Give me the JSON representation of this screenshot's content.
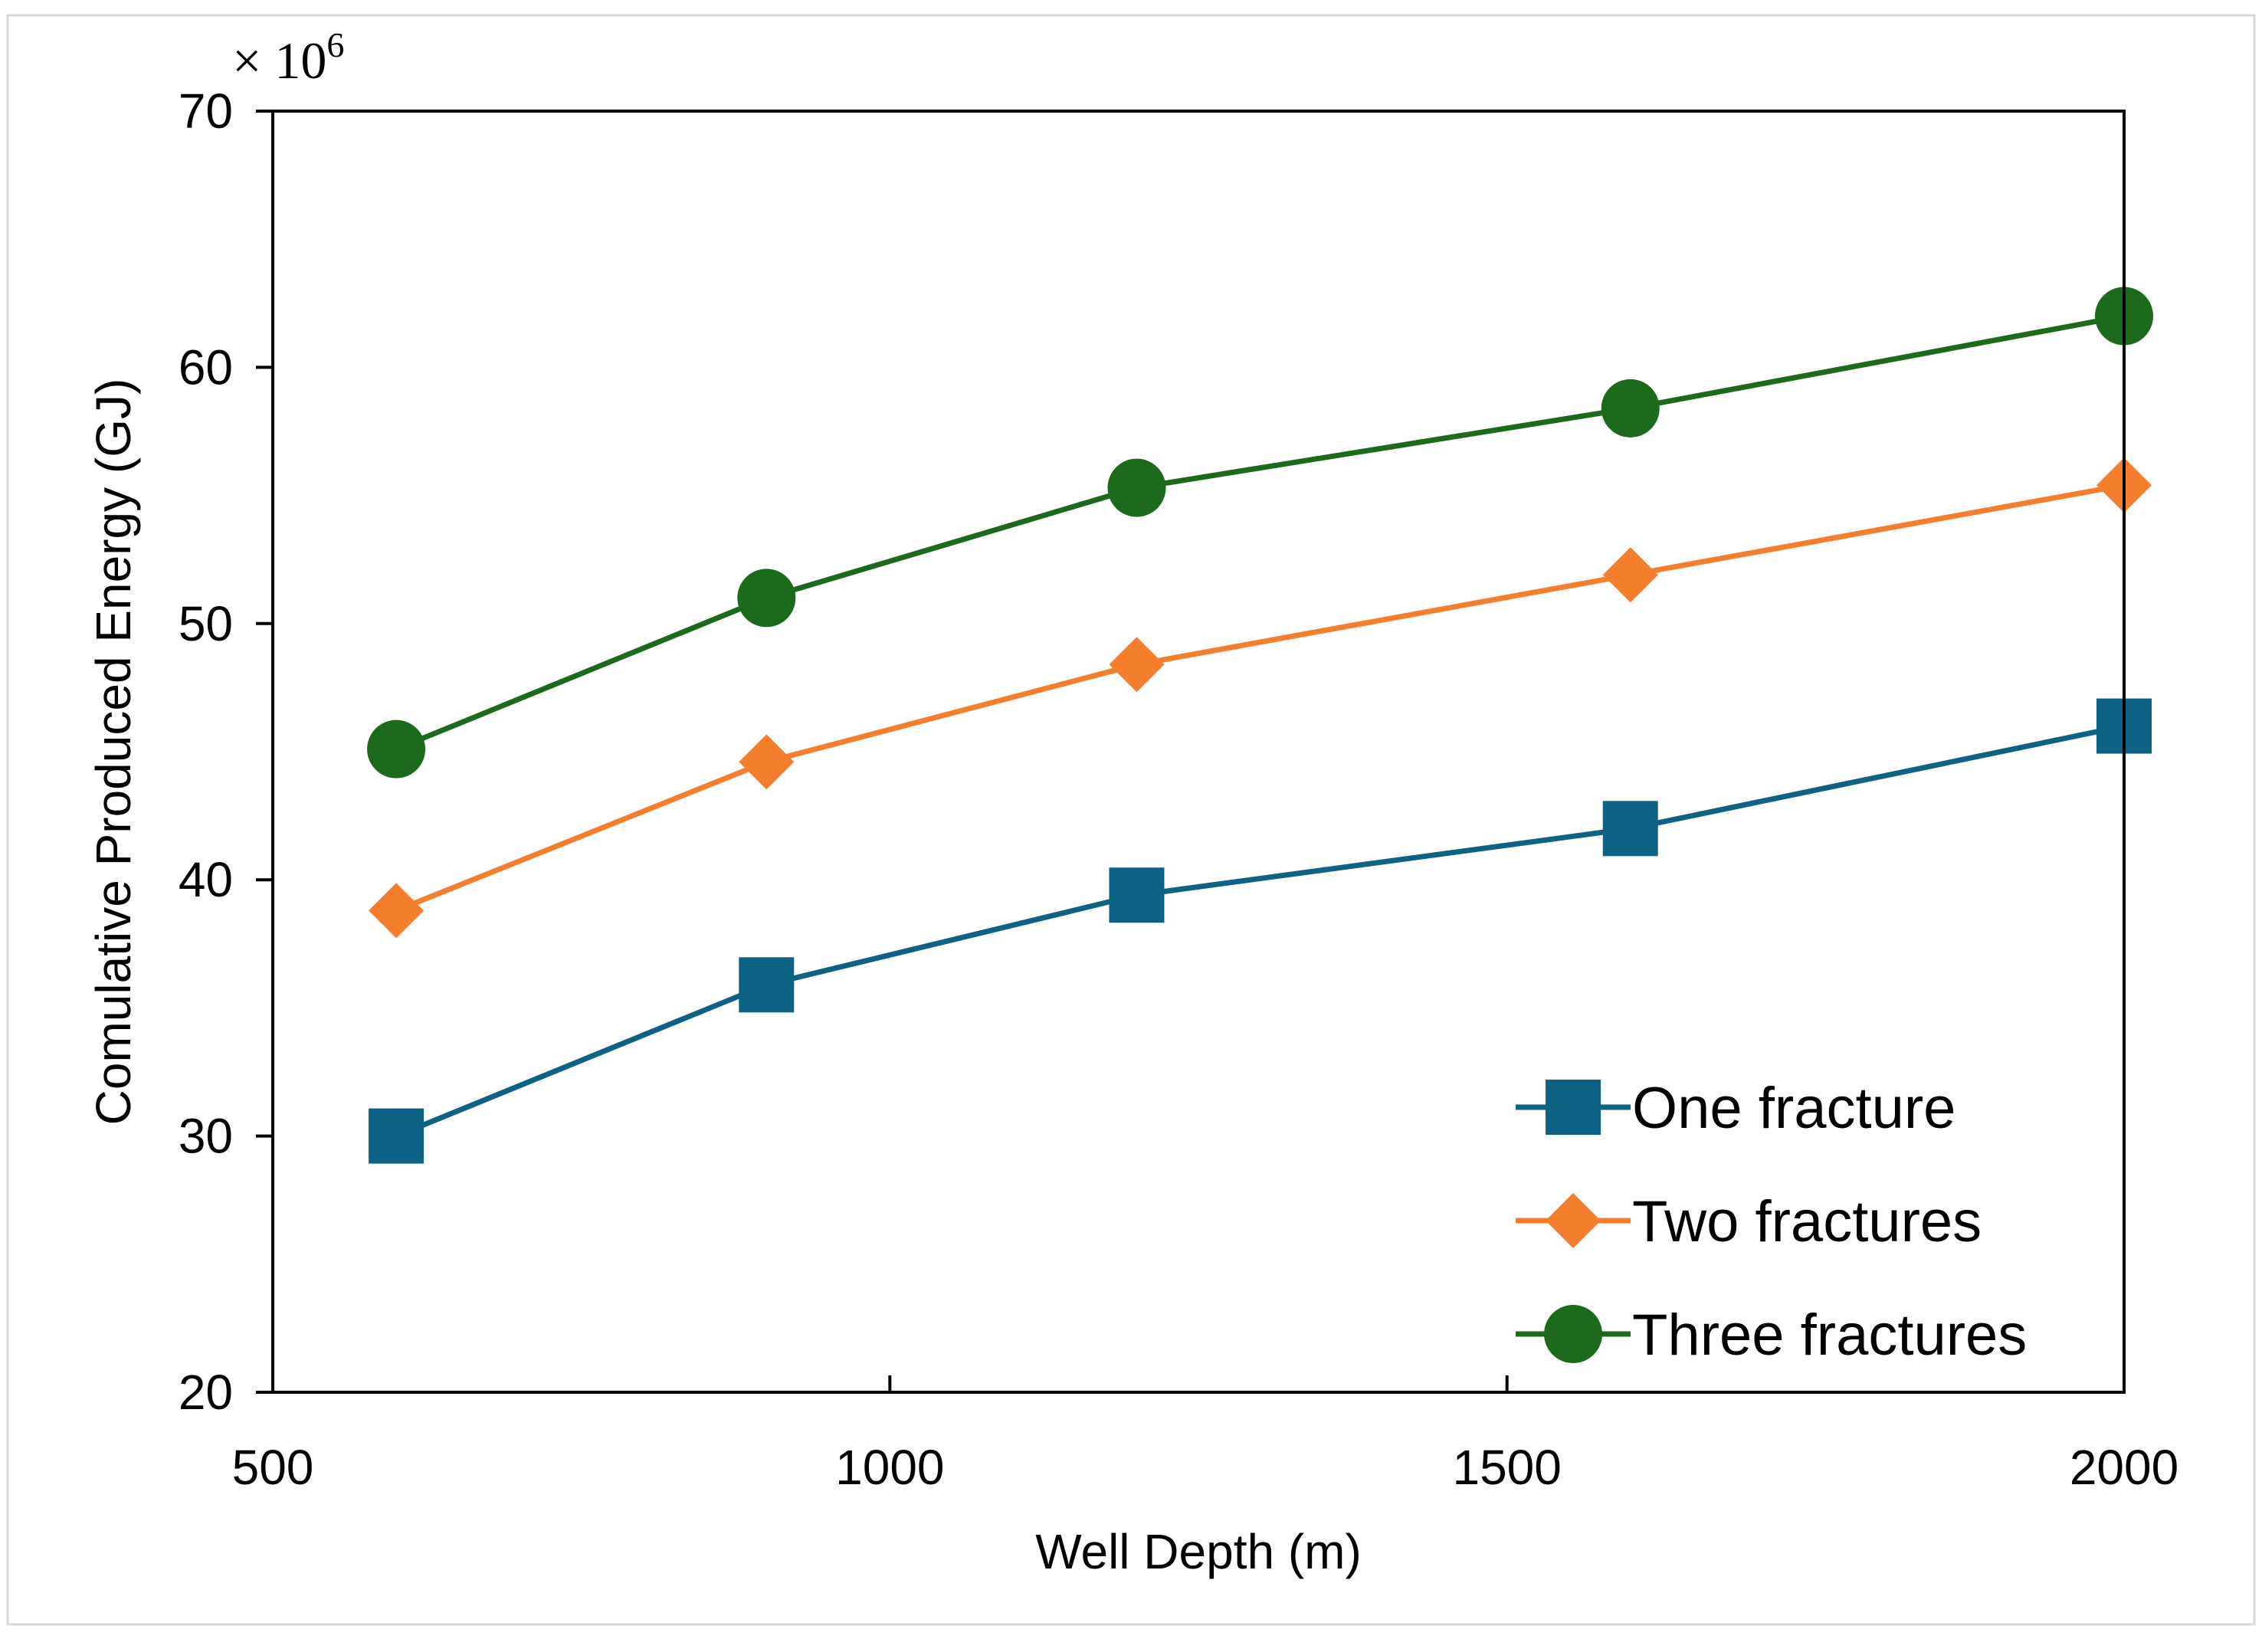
{
  "chart_data": {
    "type": "line",
    "title": "",
    "xlabel": "Well Depth (m)",
    "ylabel": "Comulative Produced Energy (GJ)",
    "y_multiplier_base": "× 10",
    "y_multiplier_exp": "6",
    "xlim": [
      500,
      2000
    ],
    "ylim": [
      20,
      70
    ],
    "xticks": [
      500,
      1000,
      1500,
      2000
    ],
    "yticks": [
      20,
      30,
      40,
      50,
      60,
      70
    ],
    "grid": false,
    "legend_position": "bottom-right",
    "x": [
      600,
      900,
      1200,
      1600,
      2000
    ],
    "series": [
      {
        "name": "One fracture",
        "marker": "square",
        "color": "#0E6285",
        "values": [
          30.0,
          35.9,
          39.4,
          42.0,
          46.0
        ]
      },
      {
        "name": "Two fractures",
        "marker": "diamond",
        "color": "#F57E2E",
        "values": [
          38.8,
          44.6,
          48.4,
          51.9,
          55.4
        ]
      },
      {
        "name": "Three fractures",
        "marker": "circle",
        "color": "#1C6B1C",
        "values": [
          45.1,
          51.0,
          55.3,
          58.4,
          62.0
        ]
      }
    ]
  }
}
